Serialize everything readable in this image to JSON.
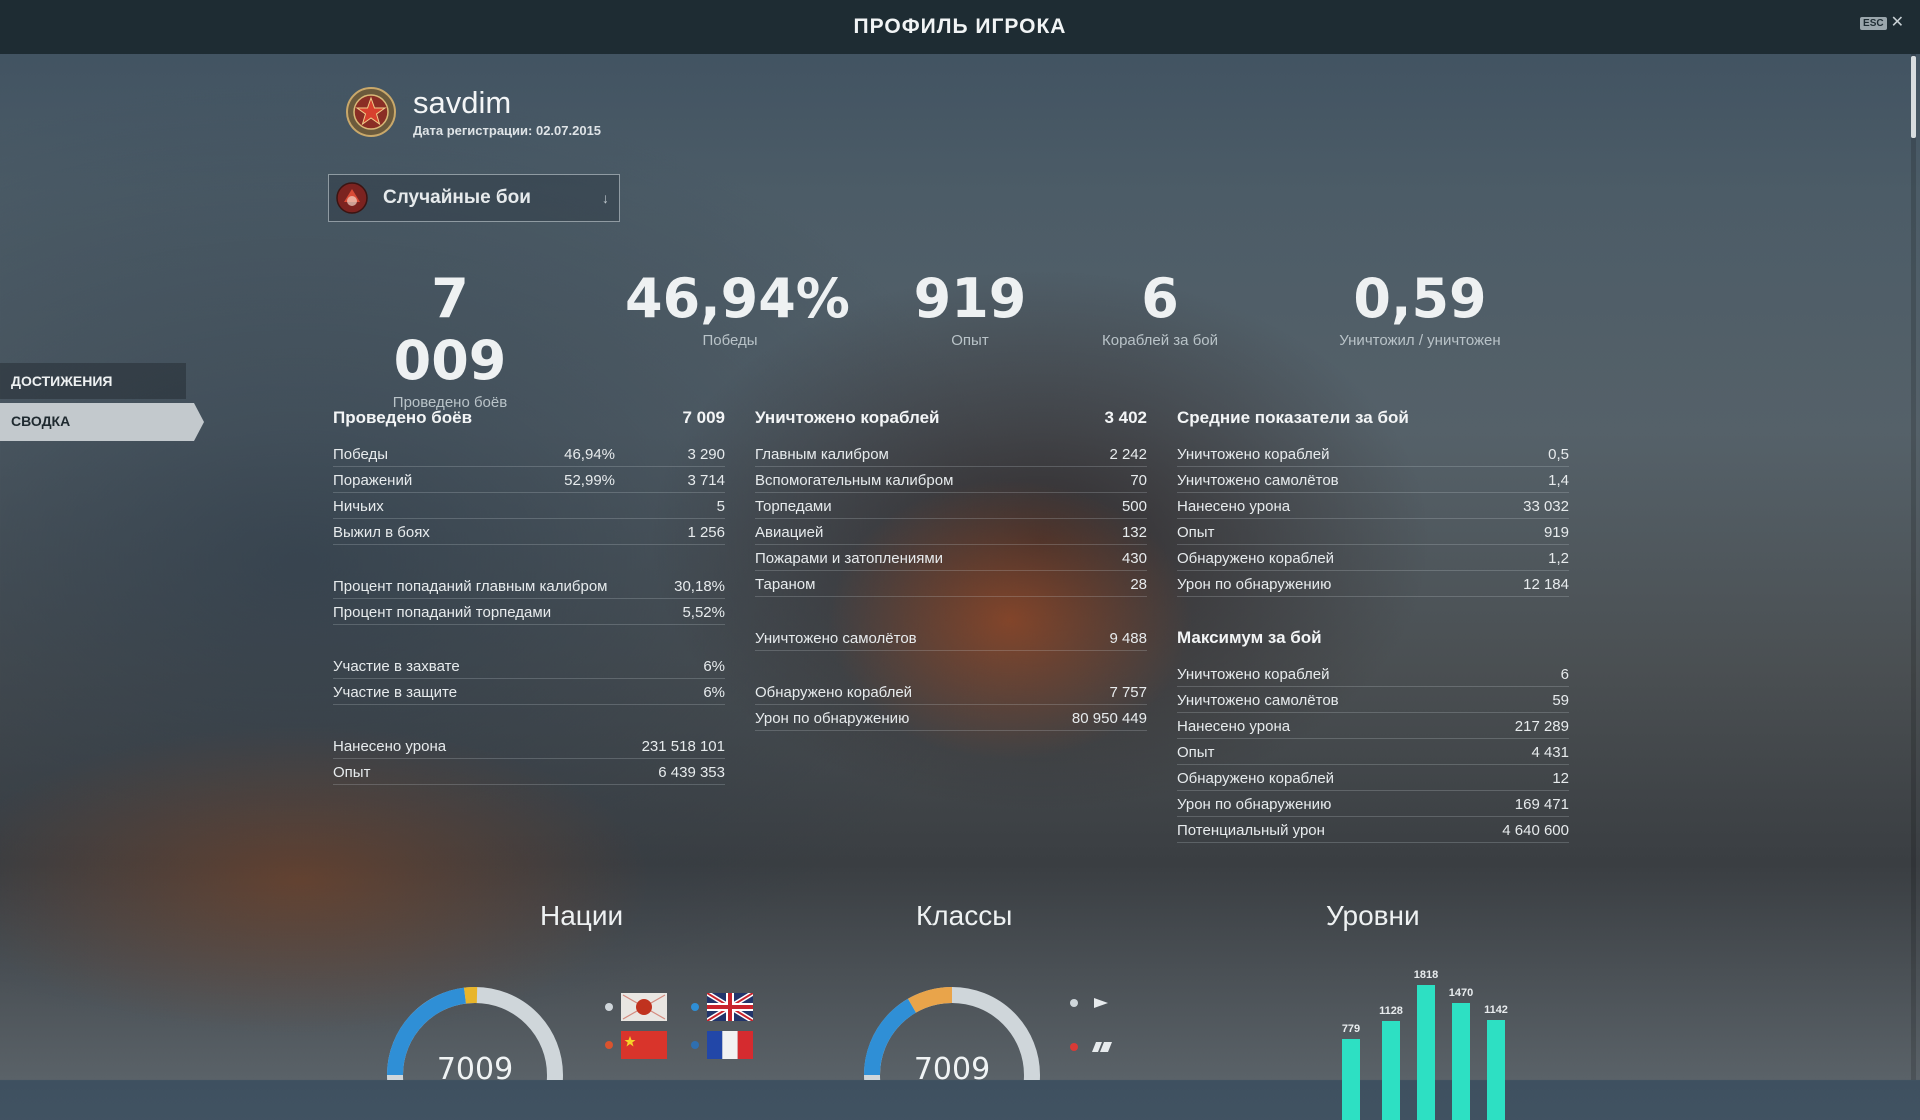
{
  "window": {
    "title": "ПРОФИЛЬ ИГРОКА",
    "esc_label": "ESC",
    "close_glyph": "✕"
  },
  "player": {
    "name": "savdim",
    "registration": "Дата регистрации: 02.07.2015"
  },
  "mode_select": {
    "selected": "Случайные бои",
    "arrow": "↓"
  },
  "summary": [
    {
      "value": "7 009",
      "label": "Проведено боёв"
    },
    {
      "value": "46,94%",
      "label": "Победы"
    },
    {
      "value": "919",
      "label": "Опыт"
    },
    {
      "value": "6",
      "label": "Кораблей за бой"
    },
    {
      "value": "0,59",
      "label": "Уничтожил / уничтожен"
    }
  ],
  "sidebar": {
    "items": [
      {
        "label": "ДОСТИЖЕНИЯ"
      },
      {
        "label": "СВОДКА"
      }
    ]
  },
  "battles": {
    "title": "Проведено боёв",
    "total": "7 009",
    "rows": [
      {
        "label": "Победы",
        "pct": "46,94%",
        "value": "3 290"
      },
      {
        "label": "Поражений",
        "pct": "52,99%",
        "value": "3 714"
      },
      {
        "label": "Ничьих",
        "pct": "",
        "value": "5"
      },
      {
        "label": "Выжил в боях",
        "pct": "",
        "value": "1 256"
      }
    ],
    "accuracy": [
      {
        "label": "Процент попаданий главным калибром",
        "value": "30,18%"
      },
      {
        "label": "Процент попаданий торпедами",
        "value": "5,52%"
      }
    ],
    "base": [
      {
        "label": "Участие в захвате",
        "value": "6%"
      },
      {
        "label": "Участие в защите",
        "value": "6%"
      }
    ],
    "totals": [
      {
        "label": "Нанесено урона",
        "value": "231 518 101"
      },
      {
        "label": "Опыт",
        "value": "6 439 353"
      }
    ]
  },
  "destroyed": {
    "title": "Уничтожено кораблей",
    "total": "3 402",
    "rows": [
      {
        "label": "Главным калибром",
        "value": "2 242"
      },
      {
        "label": "Вспомогательным калибром",
        "value": "70"
      },
      {
        "label": "Торпедами",
        "value": "500"
      },
      {
        "label": "Авиацией",
        "value": "132"
      },
      {
        "label": "Пожарами и затоплениями",
        "value": "430"
      },
      {
        "label": "Тараном",
        "value": "28"
      }
    ],
    "planes": [
      {
        "label": "Уничтожено самолётов",
        "value": "9 488"
      }
    ],
    "spotting": [
      {
        "label": "Обнаружено кораблей",
        "value": "7 757"
      },
      {
        "label": "Урон по обнаружению",
        "value": "80 950 449"
      }
    ]
  },
  "averages": {
    "title": "Средние показатели за бой",
    "rows": [
      {
        "label": "Уничтожено кораблей",
        "value": "0,5"
      },
      {
        "label": "Уничтожено самолётов",
        "value": "1,4"
      },
      {
        "label": "Нанесено урона",
        "value": "33 032"
      },
      {
        "label": "Опыт",
        "value": "919"
      },
      {
        "label": "Обнаружено кораблей",
        "value": "1,2"
      },
      {
        "label": "Урон по обнаружению",
        "value": "12 184"
      }
    ]
  },
  "maximum": {
    "title": "Максимум за бой",
    "rows": [
      {
        "label": "Уничтожено кораблей",
        "value": "6"
      },
      {
        "label": "Уничтожено самолётов",
        "value": "59"
      },
      {
        "label": "Нанесено урона",
        "value": "217 289"
      },
      {
        "label": "Опыт",
        "value": "4 431"
      },
      {
        "label": "Обнаружено кораблей",
        "value": "12"
      },
      {
        "label": "Урон по обнаружению",
        "value": "169 471"
      },
      {
        "label": "Потенциальный урон",
        "value": "4 640 600"
      }
    ]
  },
  "charts": {
    "nations": {
      "title": "Нации",
      "center": "7009"
    },
    "classes": {
      "title": "Классы",
      "center": "7009"
    },
    "tiers": {
      "title": "Уровни"
    }
  },
  "chart_data": {
    "type": "bar",
    "title": "Уровни",
    "categories": [
      "",
      "",
      "",
      "",
      ""
    ],
    "values": [
      779,
      1128,
      1818,
      1470,
      1142
    ]
  },
  "colors": {
    "accent_teal": "#2de0c3",
    "donut_blue": "#2f8fd6",
    "donut_orange": "#e9a44a",
    "donut_yellow": "#e8b52a",
    "donut_grey": "#cfd6da"
  }
}
